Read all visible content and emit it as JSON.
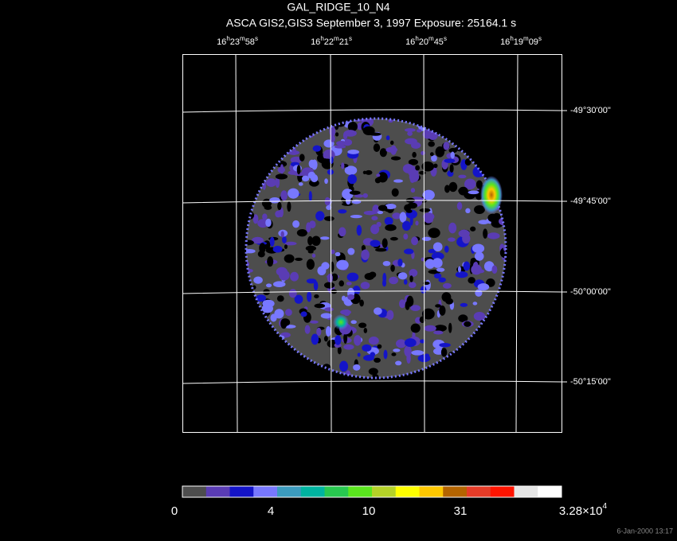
{
  "title": "GAL_RIDGE_10_N4",
  "subtitle": "ASCA GIS2,GIS3 September 3, 1997 Exposure: 25164.1 s",
  "ra_labels": [
    [
      "16",
      "h",
      "23",
      "m",
      "58",
      "s"
    ],
    [
      "16",
      "h",
      "22",
      "m",
      "21",
      "s"
    ],
    [
      "16",
      "h",
      "20",
      "m",
      "45",
      "s"
    ],
    [
      "16",
      "h",
      "19",
      "m",
      "09",
      "s"
    ]
  ],
  "dec_labels": [
    "-49°30'00\"",
    "-49°45'00\"",
    "-50°00'00\"",
    "-50°15'00\""
  ],
  "colorbar": {
    "colors": [
      "#4d4d4d",
      "#5a3cb4",
      "#1414c8",
      "#7878ff",
      "#3c9bbe",
      "#00b4a0",
      "#28c850",
      "#5ae61e",
      "#b4d228",
      "#ffff00",
      "#ffc800",
      "#b46400",
      "#e63c28",
      "#ff1400",
      "#e6e6e6",
      "#ffffff"
    ],
    "labels": [
      [
        "0"
      ],
      [
        "4"
      ],
      [
        "10"
      ],
      [
        "31"
      ],
      [
        "3.28×10",
        "4"
      ]
    ]
  },
  "timestamp": "6-Jan-2000 13:17"
}
